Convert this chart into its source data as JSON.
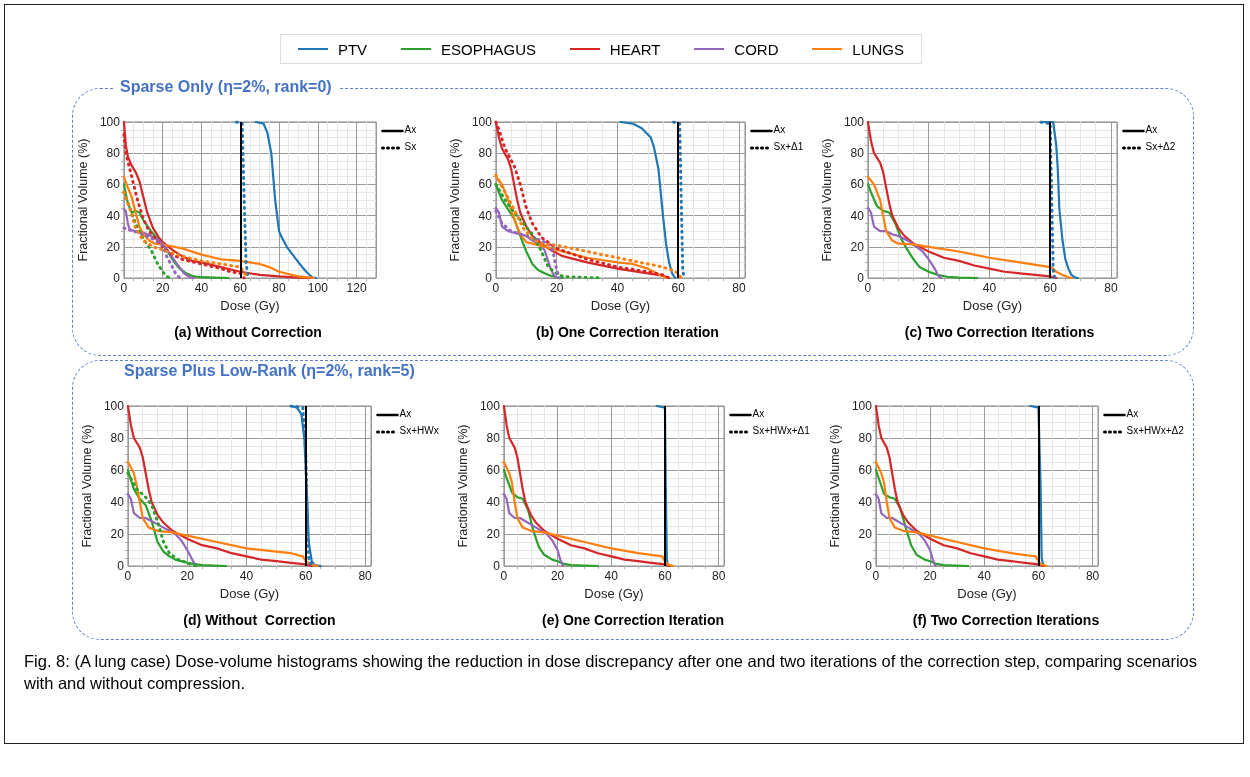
{
  "chart_data": [
    {
      "type": "line",
      "title": "(a) Without Correction",
      "subtitle": "Sparse Only  (η=2%, rank=0)",
      "xlabel": "Dose (Gy)",
      "ylabel": "Fractional Volume (%)",
      "xlim": [
        0,
        130
      ],
      "xticks": [
        0,
        20,
        40,
        60,
        80,
        100,
        120
      ],
      "ylim": [
        0,
        100
      ],
      "yticks": [
        0,
        20,
        40,
        60,
        80,
        100
      ],
      "grid": true,
      "marker": "none",
      "legend": "top",
      "annotations": [
        "Ax",
        "Sx"
      ],
      "ref_lines": [
        {
          "axis": "x",
          "value": 60,
          "color": "#000000"
        }
      ],
      "series": [
        {
          "name": "PTV",
          "color": "#1f77b4",
          "line_style": "solid",
          "x": [
            68,
            72,
            74,
            76,
            77,
            78,
            79,
            80,
            81,
            84,
            87,
            90,
            94,
            97,
            99
          ],
          "values": [
            100,
            99,
            93,
            80,
            65,
            50,
            40,
            30,
            27,
            20,
            15,
            10,
            4,
            0.5,
            0
          ]
        },
        {
          "name": "ESOPHAGUS",
          "color": "#2ca02c",
          "line_style": "solid",
          "x": [
            0,
            2,
            4,
            6,
            8,
            10,
            14,
            18,
            22,
            25,
            28,
            32,
            36,
            40,
            50,
            54
          ],
          "values": [
            60,
            48,
            42,
            43,
            42,
            37,
            30,
            24,
            18,
            12,
            7,
            3,
            1,
            0.5,
            0.1,
            0
          ]
        },
        {
          "name": "HEART",
          "color": "#d62728",
          "line_style": "solid",
          "x": [
            0,
            1,
            2,
            4,
            6,
            8,
            10,
            12,
            15,
            18,
            20,
            25,
            30,
            35,
            40,
            50,
            60,
            70,
            80,
            90,
            97
          ],
          "values": [
            100,
            85,
            78,
            72,
            68,
            62,
            52,
            42,
            32,
            26,
            23,
            18,
            14,
            11,
            10,
            7,
            4,
            2,
            1,
            0.3,
            0
          ]
        },
        {
          "name": "CORD",
          "color": "#9467bd",
          "line_style": "solid",
          "x": [
            0,
            1,
            2,
            3,
            6,
            10,
            14,
            18,
            20,
            24,
            28,
            31,
            34,
            36
          ],
          "values": [
            44,
            43,
            35,
            31,
            30,
            29,
            27,
            24,
            22,
            15,
            8,
            3,
            0.5,
            0
          ]
        },
        {
          "name": "LUNGS",
          "color": "#ff7f0e",
          "line_style": "solid",
          "x": [
            0,
            2,
            4,
            6,
            8,
            10,
            13,
            16,
            20,
            30,
            40,
            50,
            60,
            70,
            75,
            80,
            90,
            98
          ],
          "values": [
            65,
            58,
            52,
            42,
            33,
            28,
            24,
            22,
            21.5,
            19,
            15,
            12,
            11,
            9,
            7,
            4,
            1,
            0
          ]
        },
        {
          "color": "#1f77b4",
          "line_style": "dotted",
          "x": [
            58,
            61,
            62,
            63,
            64
          ],
          "values": [
            100,
            99,
            50,
            10,
            0
          ]
        },
        {
          "color": "#2ca02c",
          "line_style": "dotted",
          "x": [
            0,
            3,
            6,
            10,
            14,
            17,
            20,
            22,
            24
          ],
          "values": [
            55,
            45,
            35,
            25,
            18,
            10,
            4,
            1,
            0
          ]
        },
        {
          "color": "#d62728",
          "line_style": "dotted",
          "x": [
            0,
            1,
            3,
            5,
            7,
            10,
            13,
            17,
            20,
            25,
            30,
            40,
            50,
            55,
            60,
            62
          ],
          "values": [
            92,
            80,
            70,
            60,
            50,
            38,
            30,
            24,
            20,
            15,
            12,
            9,
            6,
            4,
            3,
            0
          ]
        },
        {
          "color": "#9467bd",
          "line_style": "dotted",
          "x": [
            0,
            2,
            5,
            10,
            15,
            20,
            22,
            25,
            27,
            29
          ],
          "values": [
            32,
            31,
            30,
            28,
            25,
            21,
            14,
            7,
            2,
            0
          ]
        },
        {
          "color": "#ff7f0e",
          "line_style": "dotted",
          "x": [
            0,
            3,
            6,
            10,
            15,
            20,
            30,
            40,
            50,
            60,
            64
          ],
          "values": [
            55,
            45,
            32,
            24,
            20,
            18,
            14,
            11,
            9,
            7,
            0
          ]
        }
      ]
    },
    {
      "type": "line",
      "title": "(b) One Correction Iteration",
      "xlabel": "Dose (Gy)",
      "ylabel": "Fractional Volume (%)",
      "xlim": [
        0,
        82
      ],
      "xticks": [
        0,
        20,
        40,
        60,
        80
      ],
      "ylim": [
        0,
        100
      ],
      "yticks": [
        0,
        20,
        40,
        60,
        80,
        100
      ],
      "grid": true,
      "marker": "none",
      "annotations": [
        "Ax",
        "Sx+Δ1"
      ],
      "ref_lines": [
        {
          "axis": "x",
          "value": 60,
          "color": "#000000"
        }
      ],
      "series": [
        {
          "color": "#1f77b4",
          "line_style": "solid",
          "x": [
            41,
            45,
            48,
            51,
            52,
            53.5,
            55,
            56,
            57,
            58,
            59
          ],
          "values": [
            100,
            99,
            96,
            90,
            84,
            70,
            40,
            22,
            10,
            3,
            0
          ]
        },
        {
          "color": "#2ca02c",
          "line_style": "solid",
          "x": [
            0,
            2,
            4,
            6,
            8,
            10,
            12,
            14,
            16,
            18,
            20,
            22
          ],
          "values": [
            60,
            50,
            44,
            38,
            27,
            17,
            9,
            5,
            3,
            1.5,
            0.5,
            0
          ]
        },
        {
          "color": "#d62728",
          "line_style": "solid",
          "x": [
            0,
            1,
            2,
            4,
            5,
            6,
            7,
            8,
            10,
            12,
            15,
            18,
            22,
            30,
            40,
            50,
            55,
            57
          ],
          "values": [
            100,
            90,
            83,
            76,
            70,
            60,
            50,
            42,
            33,
            27,
            22,
            18,
            14,
            10,
            6,
            3,
            1.5,
            0
          ]
        },
        {
          "color": "#9467bd",
          "line_style": "solid",
          "x": [
            0,
            1,
            2,
            4,
            6,
            8,
            10,
            12,
            14,
            16,
            17,
            18,
            19,
            20
          ],
          "values": [
            45,
            42,
            33,
            30,
            29,
            28,
            27,
            24,
            22,
            18,
            12,
            6,
            2,
            0
          ]
        },
        {
          "color": "#ff7f0e",
          "line_style": "solid",
          "x": [
            0,
            2,
            4,
            6,
            8,
            10,
            12,
            20,
            30,
            40,
            45,
            50,
            54,
            56
          ],
          "values": [
            65,
            60,
            50,
            38,
            28,
            23,
            22,
            18,
            13,
            10,
            9,
            6,
            2,
            0
          ]
        },
        {
          "color": "#1f77b4",
          "line_style": "dotted",
          "x": [
            58.5,
            60.5,
            61,
            61.5,
            62
          ],
          "values": [
            100,
            99,
            50,
            5,
            0
          ]
        },
        {
          "color": "#2ca02c",
          "line_style": "dotted",
          "x": [
            0,
            3,
            6,
            9,
            12,
            15,
            17,
            19,
            22,
            30,
            35
          ],
          "values": [
            60,
            50,
            42,
            35,
            28,
            17,
            8,
            4,
            1,
            0.3,
            0
          ]
        },
        {
          "color": "#d62728",
          "line_style": "dotted",
          "x": [
            0,
            1,
            3,
            6,
            8,
            10,
            12,
            15,
            20,
            30,
            40,
            50,
            55,
            57
          ],
          "values": [
            100,
            95,
            83,
            72,
            60,
            45,
            35,
            26,
            19,
            12,
            7,
            4,
            2,
            0
          ]
        },
        {
          "color": "#9467bd",
          "line_style": "dotted",
          "x": [
            0,
            2,
            5,
            10,
            15,
            18,
            19,
            20,
            21
          ],
          "values": [
            43,
            35,
            30,
            27,
            24,
            21,
            15,
            5,
            0
          ]
        },
        {
          "color": "#ff7f0e",
          "line_style": "dotted",
          "x": [
            0,
            3,
            6,
            9,
            12,
            15,
            20,
            30,
            40,
            50,
            55,
            58,
            60,
            61
          ],
          "values": [
            66,
            55,
            44,
            32,
            25,
            22,
            21,
            17,
            13,
            9,
            7,
            5,
            3,
            0
          ]
        }
      ]
    },
    {
      "type": "line",
      "title": "(c) Two Correction Iterations",
      "xlabel": "Dose (Gy)",
      "ylabel": "Fractional Volume (%)",
      "xlim": [
        0,
        82
      ],
      "xticks": [
        0,
        20,
        40,
        60,
        80
      ],
      "ylim": [
        0,
        100
      ],
      "yticks": [
        0,
        20,
        40,
        60,
        80,
        100
      ],
      "grid": true,
      "marker": "none",
      "annotations": [
        "Ax",
        "Sx+Δ2"
      ],
      "ref_lines": [
        {
          "axis": "x",
          "value": 60,
          "color": "#000000"
        }
      ],
      "series": [
        {
          "color": "#1f77b4",
          "line_style": "solid",
          "x": [
            58,
            61,
            62,
            62.5,
            63,
            64,
            65,
            66,
            67,
            68,
            69
          ],
          "values": [
            100,
            100,
            85,
            70,
            45,
            25,
            12,
            6,
            2,
            0.5,
            0
          ]
        },
        {
          "color": "#2ca02c",
          "line_style": "solid",
          "x": [
            0,
            1,
            3,
            5,
            7,
            9,
            11,
            13,
            15,
            17,
            20,
            23,
            26,
            30,
            36
          ],
          "values": [
            60,
            55,
            46,
            43,
            42,
            35,
            25,
            18,
            12,
            7,
            4,
            2,
            0.8,
            0.3,
            0
          ]
        },
        {
          "color": "#d62728",
          "line_style": "solid",
          "x": [
            0,
            1,
            2,
            4,
            5,
            6,
            7,
            8,
            10,
            12,
            15,
            18,
            20,
            25,
            30,
            35,
            40,
            45,
            50,
            55,
            60,
            62
          ],
          "values": [
            100,
            88,
            80,
            74,
            68,
            58,
            48,
            40,
            32,
            27,
            22,
            19,
            17,
            13,
            11,
            8,
            6,
            4,
            3,
            2,
            1,
            0
          ]
        },
        {
          "color": "#9467bd",
          "line_style": "solid",
          "x": [
            0,
            1,
            2,
            4,
            6,
            8,
            10,
            12,
            14,
            16,
            18,
            20,
            22,
            23,
            24
          ],
          "values": [
            45,
            42,
            33,
            30,
            30,
            28,
            27,
            25,
            23,
            20,
            17,
            12,
            6,
            2,
            0
          ]
        },
        {
          "color": "#ff7f0e",
          "line_style": "solid",
          "x": [
            0,
            2,
            4,
            5,
            6,
            8,
            10,
            15,
            20,
            30,
            40,
            50,
            60,
            61,
            62,
            64,
            66,
            67
          ],
          "values": [
            65,
            60,
            50,
            40,
            30,
            24,
            22,
            21.5,
            20,
            17,
            13,
            10,
            7,
            6,
            4,
            2,
            0.5,
            0
          ]
        },
        {
          "color": "#1f77b4",
          "line_style": "dotted",
          "x": [
            57,
            60,
            60.5,
            61,
            61.5
          ],
          "values": [
            100,
            99,
            50,
            5,
            0
          ]
        }
      ]
    },
    {
      "type": "line",
      "title": "(d) Without  Correction",
      "subtitle": "Sparse Plus Low-Rank  (η=2%, rank=5)",
      "xlabel": "Dose (Gy)",
      "ylabel": "Fractional Volume (%)",
      "xlim": [
        0,
        82
      ],
      "xticks": [
        0,
        20,
        40,
        60,
        80
      ],
      "ylim": [
        0,
        100
      ],
      "yticks": [
        0,
        20,
        40,
        60,
        80,
        100
      ],
      "grid": true,
      "marker": "none",
      "annotations": [
        "Ax",
        "Sx+HWx"
      ],
      "ref_lines": [
        {
          "axis": "x",
          "value": 60,
          "color": "#000000"
        }
      ],
      "series": [
        {
          "color": "#1f77b4",
          "line_style": "solid",
          "x": [
            55,
            57,
            58.5,
            59.5,
            60,
            60.5,
            61,
            62,
            63,
            65
          ],
          "values": [
            100,
            99,
            95,
            80,
            60,
            40,
            15,
            3,
            0.5,
            0
          ]
        },
        {
          "color": "#2ca02c",
          "line_style": "solid",
          "x": [
            0,
            2,
            4,
            6,
            8,
            10,
            12,
            14,
            16,
            20,
            25,
            33
          ],
          "values": [
            60,
            48,
            42,
            38,
            28,
            15,
            9,
            6,
            4,
            2,
            0.5,
            0
          ]
        },
        {
          "color": "#d62728",
          "line_style": "solid",
          "x": [
            0,
            1,
            2,
            4,
            5,
            6,
            7,
            8,
            10,
            12,
            15,
            18,
            20,
            25,
            30,
            35,
            40,
            45,
            50,
            55,
            60,
            62
          ],
          "values": [
            100,
            88,
            80,
            74,
            68,
            58,
            48,
            40,
            32,
            27,
            22,
            19,
            17,
            13,
            11,
            8,
            6,
            4,
            3,
            2,
            1,
            0
          ]
        },
        {
          "color": "#9467bd",
          "line_style": "solid",
          "x": [
            0,
            1,
            2,
            4,
            6,
            8,
            10,
            12,
            14,
            16,
            18,
            20,
            22,
            23
          ],
          "values": [
            45,
            42,
            33,
            30,
            30,
            28,
            26,
            24,
            22,
            20,
            16,
            10,
            3,
            0
          ]
        },
        {
          "color": "#ff7f0e",
          "line_style": "solid",
          "x": [
            0,
            2,
            3,
            4,
            5,
            7,
            10,
            15,
            20,
            30,
            40,
            50,
            55,
            59,
            60,
            62,
            64
          ],
          "values": [
            65,
            58,
            50,
            40,
            30,
            24,
            22,
            21,
            19,
            15,
            11,
            9,
            8,
            6,
            3,
            1,
            0
          ]
        },
        {
          "color": "#1f77b4",
          "line_style": "dotted",
          "x": [
            55,
            59,
            60,
            60.5,
            61,
            62
          ],
          "values": [
            100,
            99,
            70,
            30,
            5,
            0
          ]
        },
        {
          "color": "#2ca02c",
          "line_style": "dotted",
          "x": [
            0,
            3,
            6,
            8,
            10,
            12,
            14,
            17,
            20,
            23
          ],
          "values": [
            58,
            48,
            43,
            38,
            28,
            15,
            8,
            4,
            2,
            0
          ]
        }
      ]
    },
    {
      "type": "line",
      "title": "(e) One Correction Iteration",
      "xlabel": "Dose (Gy)",
      "ylabel": "Fractional Volume (%)",
      "xlim": [
        0,
        82
      ],
      "xticks": [
        0,
        20,
        40,
        60,
        80
      ],
      "ylim": [
        0,
        100
      ],
      "yticks": [
        0,
        20,
        40,
        60,
        80,
        100
      ],
      "grid": true,
      "marker": "none",
      "annotations": [
        "Ax",
        "Sx+HWx+Δ1"
      ],
      "ref_lines": [
        {
          "axis": "x",
          "value": 60,
          "color": "#000000"
        }
      ],
      "series": [
        {
          "color": "#1f77b4",
          "line_style": "solid",
          "x": [
            57,
            60,
            60.3,
            60.7,
            61
          ],
          "values": [
            100,
            99,
            50,
            5,
            0
          ]
        },
        {
          "color": "#2ca02c",
          "line_style": "solid",
          "x": [
            0,
            1,
            3,
            5,
            7,
            9,
            11,
            13,
            15,
            18,
            20,
            22,
            25,
            35
          ],
          "values": [
            60,
            55,
            46,
            43,
            42,
            35,
            22,
            12,
            7,
            4,
            3,
            1.5,
            0.5,
            0
          ]
        },
        {
          "color": "#d62728",
          "line_style": "solid",
          "x": [
            0,
            1,
            2,
            4,
            5,
            6,
            7,
            8,
            10,
            12,
            15,
            18,
            20,
            25,
            30,
            35,
            40,
            45,
            50,
            55,
            60,
            62
          ],
          "values": [
            100,
            88,
            80,
            74,
            68,
            58,
            48,
            40,
            32,
            27,
            22,
            19,
            17,
            13,
            11,
            8,
            6,
            4,
            3,
            2,
            1,
            0
          ]
        },
        {
          "color": "#9467bd",
          "line_style": "solid",
          "x": [
            0,
            1,
            2,
            4,
            6,
            8,
            10,
            12,
            14,
            16,
            18,
            20,
            21,
            22
          ],
          "values": [
            45,
            42,
            33,
            30,
            30,
            28,
            26,
            24,
            22,
            20,
            16,
            10,
            4,
            0
          ]
        },
        {
          "color": "#ff7f0e",
          "line_style": "solid",
          "x": [
            0,
            2,
            3,
            4,
            5,
            7,
            10,
            15,
            20,
            30,
            40,
            50,
            59,
            60,
            61,
            63
          ],
          "values": [
            65,
            58,
            52,
            40,
            30,
            24,
            22,
            21,
            19,
            15,
            11,
            8,
            6,
            3,
            1,
            0
          ]
        }
      ]
    },
    {
      "type": "line",
      "title": "(f) Two Correction Iterations",
      "xlabel": "Dose (Gy)",
      "ylabel": "Fractional Volume (%)",
      "xlim": [
        0,
        82
      ],
      "xticks": [
        0,
        20,
        40,
        60,
        80
      ],
      "ylim": [
        0,
        100
      ],
      "yticks": [
        0,
        20,
        40,
        60,
        80,
        100
      ],
      "grid": true,
      "marker": "none",
      "annotations": [
        "Ax",
        "Sx+HWx+Δ2",
        "Fig. 8: (A lung case) Dose-volume histograms showing the reduction in dose discrepancy after one and two iterations of the correction step, comparing scenarios with and without compression."
      ],
      "ref_lines": [
        {
          "axis": "x",
          "value": 60,
          "color": "#000000"
        }
      ],
      "series": [
        {
          "color": "#1f77b4",
          "line_style": "solid",
          "x": [
            57,
            60,
            60.8,
            61.2,
            61.8
          ],
          "values": [
            100,
            99,
            50,
            5,
            0
          ]
        },
        {
          "color": "#2ca02c",
          "line_style": "solid",
          "x": [
            0,
            1,
            3,
            5,
            7,
            9,
            11,
            13,
            15,
            18,
            20,
            22,
            25,
            34
          ],
          "values": [
            60,
            55,
            45,
            43,
            42,
            36,
            24,
            13,
            7,
            4,
            3,
            1.5,
            0.5,
            0
          ]
        },
        {
          "color": "#d62728",
          "line_style": "solid",
          "x": [
            0,
            1,
            2,
            4,
            5,
            6,
            7,
            8,
            10,
            12,
            15,
            18,
            20,
            25,
            30,
            35,
            40,
            45,
            50,
            55,
            60,
            62
          ],
          "values": [
            100,
            88,
            80,
            74,
            68,
            58,
            48,
            40,
            32,
            27,
            22,
            19,
            17,
            13,
            11,
            8,
            6,
            4,
            3,
            2,
            1,
            0
          ]
        },
        {
          "color": "#9467bd",
          "line_style": "solid",
          "x": [
            0,
            1,
            2,
            4,
            6,
            8,
            10,
            12,
            14,
            16,
            18,
            20,
            21,
            22
          ],
          "values": [
            45,
            42,
            33,
            30,
            30,
            28,
            26,
            24,
            22,
            20,
            16,
            10,
            4,
            0
          ]
        },
        {
          "color": "#ff7f0e",
          "line_style": "solid",
          "x": [
            0,
            2,
            3,
            4,
            5,
            7,
            10,
            15,
            20,
            30,
            40,
            50,
            59,
            60,
            61,
            63
          ],
          "values": [
            65,
            58,
            52,
            40,
            30,
            24,
            22,
            21,
            19,
            15,
            11,
            8,
            6,
            3,
            1,
            0
          ]
        }
      ]
    }
  ]
}
